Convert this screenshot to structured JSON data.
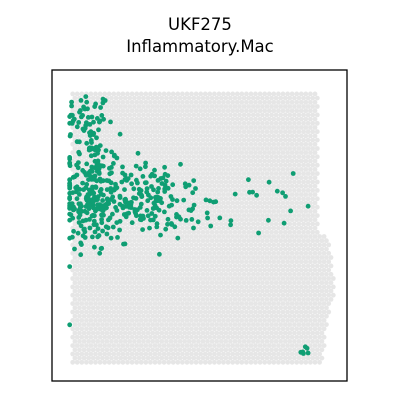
{
  "chart_data": {
    "type": "scatter",
    "title_lines": [
      "UKF275",
      "Inflammatory.Mac"
    ],
    "xlabel": "",
    "ylabel": "",
    "grid": false,
    "axes_ticks": false,
    "colors": {
      "background_spots": "#e6e6e6",
      "highlighted_spots": "#0f9e73",
      "frame": "#000000"
    },
    "tissue_outline": [
      [
        0.07,
        0.93
      ],
      [
        0.9,
        0.93
      ],
      [
        0.9,
        0.5
      ],
      [
        0.94,
        0.44
      ],
      [
        0.96,
        0.3
      ],
      [
        0.93,
        0.18
      ],
      [
        0.92,
        0.06
      ],
      [
        0.07,
        0.06
      ]
    ],
    "highlighted_regions": [
      {
        "label": "dense-cluster-upper",
        "center": [
          0.12,
          0.83
        ],
        "spread": [
          0.04,
          0.05
        ],
        "count": 55
      },
      {
        "label": "dense-cluster-core",
        "center": [
          0.13,
          0.6
        ],
        "spread": [
          0.05,
          0.1
        ],
        "count": 230
      },
      {
        "label": "dense-cluster-mid",
        "center": [
          0.3,
          0.58
        ],
        "spread": [
          0.07,
          0.06
        ],
        "count": 150
      },
      {
        "label": "tail",
        "center": [
          0.52,
          0.56
        ],
        "spread": [
          0.1,
          0.04
        ],
        "count": 40
      },
      {
        "label": "sparse-right",
        "center": [
          0.78,
          0.58
        ],
        "spread": [
          0.05,
          0.08
        ],
        "count": 8
      },
      {
        "label": "bottom-right",
        "center": [
          0.86,
          0.09
        ],
        "spread": [
          0.015,
          0.01
        ],
        "count": 6
      }
    ]
  }
}
